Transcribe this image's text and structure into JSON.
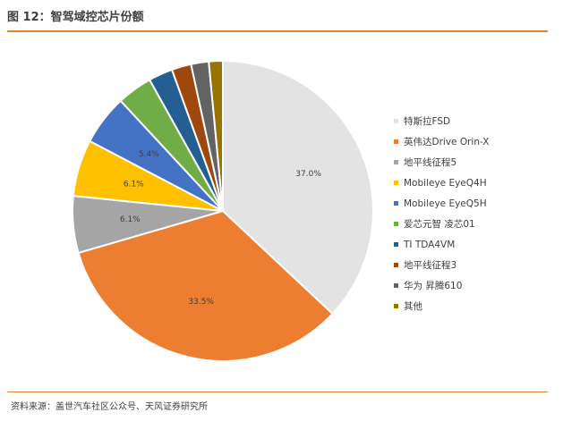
{
  "figure": {
    "title": "图 12：智驾域控芯片份额",
    "source": "资料来源：盖世汽车社区公众号、天风证券研究所"
  },
  "chart_data": {
    "type": "pie",
    "title": "",
    "categories": [
      "特斯拉FSD",
      "英伟达Drive Orin-X",
      "地平线征程5",
      "Mobileye EyeQ4H",
      "Mobileye EyeQ5H",
      "爱芯元智 凌芯01",
      "TI TDA4VM",
      "地平线征程3",
      "华为 昇腾610",
      "其他"
    ],
    "values": [
      37.0,
      33.5,
      6.1,
      6.1,
      5.4,
      3.8,
      2.6,
      2.1,
      1.9,
      1.5
    ],
    "data_labels": [
      "37.0%",
      "33.5%",
      "6.1%",
      "6.1%",
      "5.4%",
      "",
      "",
      "",
      "",
      ""
    ],
    "colors": [
      "#e3e3e3",
      "#ed7d31",
      "#a5a5a5",
      "#ffc000",
      "#4472c4",
      "#70ad47",
      "#255e91",
      "#9e480e",
      "#636363",
      "#997300"
    ],
    "start_angle_deg": 0,
    "direction": "clockwise",
    "legend_position": "right"
  }
}
